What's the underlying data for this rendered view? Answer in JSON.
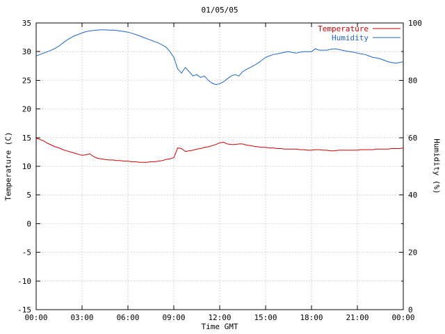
{
  "chart": {
    "title": "01/05/05",
    "colors": {
      "temperature": "#cc0000",
      "humidity": "#1e64c8",
      "grid": "#c8c8c8",
      "axis": "#000000",
      "background": "#ffffff"
    }
  },
  "chart_data": {
    "type": "line",
    "title": "01/05/05",
    "xlabel": "Time GMT",
    "ylabel_left": "Temperature (C)",
    "ylabel_right": "Humidity (%)",
    "legend_position": "top-right",
    "grid": true,
    "x_tick_hours": [
      0,
      3,
      6,
      9,
      12,
      15,
      18,
      21,
      24
    ],
    "x_tick_labels": [
      "00:00",
      "03:00",
      "06:00",
      "09:00",
      "12:00",
      "15:00",
      "18:00",
      "21:00",
      "00:00"
    ],
    "ylim_left": [
      -15,
      35
    ],
    "left_ticks": [
      -15,
      -10,
      -5,
      0,
      5,
      10,
      15,
      20,
      25,
      30,
      35
    ],
    "ylim_right": [
      0,
      100
    ],
    "right_ticks": [
      0,
      20,
      40,
      60,
      80,
      100
    ],
    "right_minor_ticks": [
      10,
      30,
      50,
      70,
      90
    ],
    "x_start_hour": 0,
    "x_step_hours": 0.25,
    "series": [
      {
        "name": "Temperature",
        "axis": "left",
        "color": "#cc0000",
        "values": [
          14.9,
          14.7,
          14.4,
          14.0,
          13.7,
          13.4,
          13.2,
          12.9,
          12.7,
          12.5,
          12.3,
          12.1,
          11.9,
          12.0,
          12.2,
          11.7,
          11.4,
          11.3,
          11.2,
          11.1,
          11.1,
          11.0,
          11.0,
          10.9,
          10.9,
          10.8,
          10.8,
          10.7,
          10.7,
          10.7,
          10.8,
          10.8,
          10.9,
          11.0,
          11.2,
          11.3,
          11.5,
          13.2,
          13.1,
          12.6,
          12.7,
          12.8,
          13.0,
          13.1,
          13.3,
          13.4,
          13.6,
          13.8,
          14.1,
          14.2,
          13.9,
          13.8,
          13.8,
          13.9,
          13.9,
          13.7,
          13.6,
          13.5,
          13.4,
          13.3,
          13.3,
          13.2,
          13.2,
          13.1,
          13.1,
          13.0,
          13.0,
          13.0,
          13.0,
          12.9,
          12.9,
          12.8,
          12.8,
          12.9,
          12.9,
          12.8,
          12.8,
          12.7,
          12.7,
          12.8,
          12.8,
          12.8,
          12.8,
          12.8,
          12.8,
          12.9,
          12.9,
          12.9,
          12.9,
          13.0,
          13.0,
          13.0,
          13.0,
          13.1,
          13.1,
          13.1,
          13.2
        ]
      },
      {
        "name": "Humidity",
        "axis": "right",
        "color": "#1e64c8",
        "values": [
          88.5,
          89.0,
          89.5,
          90.0,
          90.5,
          91.2,
          92.0,
          93.0,
          94.0,
          94.8,
          95.5,
          96.0,
          96.5,
          97.0,
          97.2,
          97.4,
          97.5,
          97.6,
          97.6,
          97.5,
          97.5,
          97.4,
          97.2,
          97.0,
          96.8,
          96.4,
          96.0,
          95.5,
          95.0,
          94.5,
          94.0,
          93.5,
          93.0,
          92.3,
          91.5,
          90.0,
          88.0,
          84.0,
          82.5,
          84.5,
          83.0,
          81.5,
          82.0,
          81.0,
          81.5,
          80.0,
          79.0,
          78.5,
          78.8,
          79.5,
          80.5,
          81.5,
          82.0,
          81.5,
          83.0,
          83.8,
          84.5,
          85.2,
          86.0,
          87.0,
          88.0,
          88.5,
          89.0,
          89.2,
          89.5,
          89.8,
          90.0,
          89.7,
          89.5,
          89.8,
          90.0,
          90.0,
          90.0,
          91.0,
          90.5,
          90.5,
          90.5,
          90.8,
          91.0,
          90.8,
          90.5,
          90.2,
          90.0,
          89.8,
          89.5,
          89.2,
          89.0,
          88.5,
          88.0,
          87.8,
          87.5,
          87.0,
          86.5,
          86.2,
          86.0,
          86.2,
          86.5
        ]
      }
    ]
  }
}
